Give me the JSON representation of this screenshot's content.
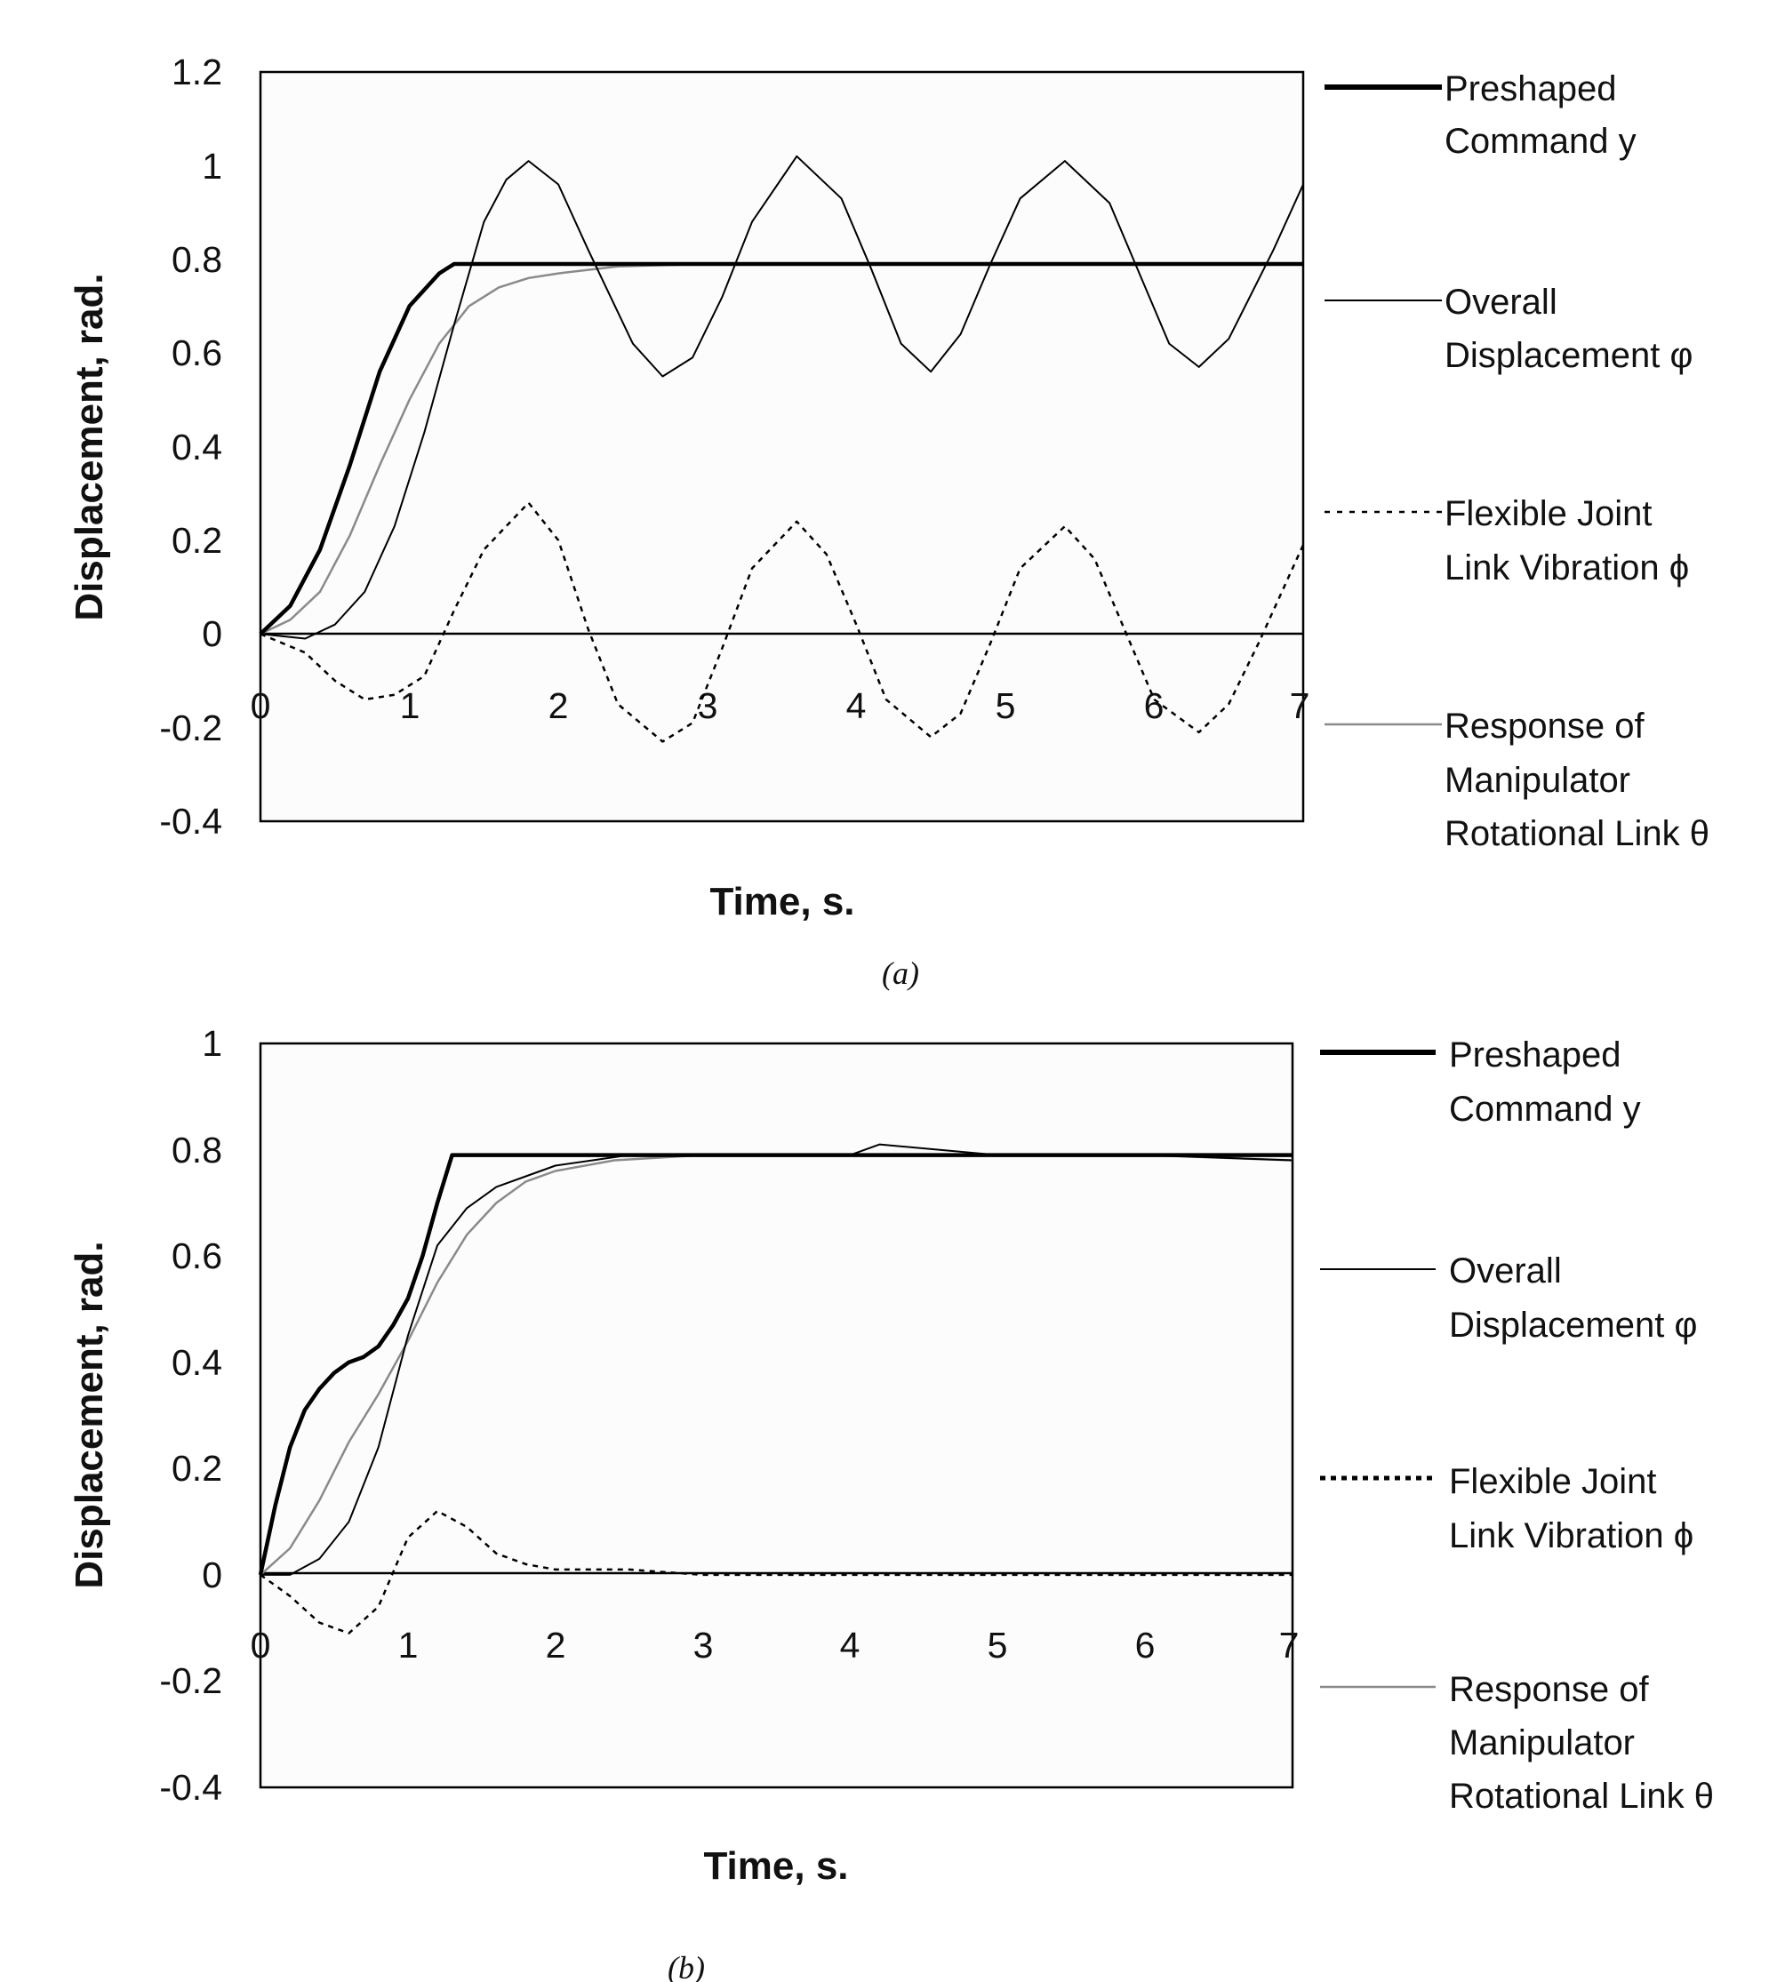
{
  "chart_data": [
    {
      "type": "line",
      "panel_label": "(a)",
      "xlabel": "Time, s.",
      "ylabel": "Displacement, rad.",
      "xlim": [
        0,
        7
      ],
      "ylim": [
        -0.4,
        1.2
      ],
      "x_ticks": [
        "0",
        "1",
        "2",
        "3",
        "4",
        "5",
        "6",
        "7"
      ],
      "y_ticks": [
        "1.2",
        "1",
        "0.8",
        "0.6",
        "0.4",
        "0.2",
        "0",
        "-0.2",
        "-0.4"
      ],
      "grid": false,
      "legend_position": "right",
      "series": [
        {
          "name": "Preshaped Command y",
          "style": "thick-solid",
          "color": "#000000",
          "x": [
            0,
            0.2,
            0.4,
            0.6,
            0.8,
            1.0,
            1.2,
            1.3,
            2,
            3,
            4,
            5,
            6,
            7
          ],
          "y": [
            0,
            0.06,
            0.18,
            0.36,
            0.56,
            0.7,
            0.77,
            0.79,
            0.79,
            0.79,
            0.79,
            0.79,
            0.79,
            0.79
          ]
        },
        {
          "name": "Overall Displacement φ",
          "style": "thin-solid",
          "color": "#000000",
          "x": [
            0,
            0.3,
            0.5,
            0.7,
            0.9,
            1.1,
            1.3,
            1.5,
            1.65,
            1.8,
            2.0,
            2.2,
            2.5,
            2.7,
            2.9,
            3.1,
            3.3,
            3.6,
            3.9,
            4.1,
            4.3,
            4.5,
            4.7,
            4.9,
            5.1,
            5.4,
            5.7,
            5.9,
            6.1,
            6.3,
            6.5,
            6.8,
            7.0
          ],
          "y": [
            0,
            -0.01,
            0.02,
            0.09,
            0.23,
            0.43,
            0.66,
            0.88,
            0.97,
            1.01,
            0.96,
            0.82,
            0.62,
            0.55,
            0.59,
            0.72,
            0.88,
            1.02,
            0.93,
            0.78,
            0.62,
            0.56,
            0.64,
            0.79,
            0.93,
            1.01,
            0.92,
            0.77,
            0.62,
            0.57,
            0.63,
            0.82,
            0.96
          ]
        },
        {
          "name": "Flexible Joint Link Vibration ϕ",
          "style": "dotted",
          "color": "#000000",
          "x": [
            0,
            0.3,
            0.5,
            0.7,
            0.9,
            1.1,
            1.3,
            1.5,
            1.8,
            2.0,
            2.2,
            2.4,
            2.7,
            2.9,
            3.1,
            3.3,
            3.6,
            3.8,
            4.0,
            4.2,
            4.5,
            4.7,
            4.9,
            5.1,
            5.4,
            5.6,
            5.8,
            6.0,
            6.3,
            6.5,
            6.7,
            7.0
          ],
          "y": [
            0,
            -0.04,
            -0.1,
            -0.14,
            -0.13,
            -0.09,
            0.05,
            0.18,
            0.28,
            0.2,
            0.01,
            -0.15,
            -0.23,
            -0.19,
            -0.03,
            0.14,
            0.24,
            0.17,
            0.02,
            -0.14,
            -0.22,
            -0.17,
            -0.02,
            0.14,
            0.23,
            0.16,
            0.01,
            -0.14,
            -0.21,
            -0.15,
            -0.02,
            0.19
          ]
        },
        {
          "name": "Response of Manipulator Rotational Link θ",
          "style": "thin-solid-gray",
          "color": "#8a8a8a",
          "x": [
            0,
            0.2,
            0.4,
            0.6,
            0.8,
            1.0,
            1.2,
            1.4,
            1.6,
            1.8,
            2.0,
            2.4,
            3,
            4,
            5,
            6,
            7
          ],
          "y": [
            0,
            0.03,
            0.09,
            0.21,
            0.36,
            0.5,
            0.62,
            0.7,
            0.74,
            0.76,
            0.77,
            0.785,
            0.79,
            0.79,
            0.79,
            0.79,
            0.79
          ]
        }
      ]
    },
    {
      "type": "line",
      "panel_label": "(b)",
      "xlabel": "Time, s.",
      "ylabel": "Displacement, rad.",
      "xlim": [
        0,
        7
      ],
      "ylim": [
        -0.4,
        1
      ],
      "x_ticks": [
        "0",
        "1",
        "2",
        "3",
        "4",
        "5",
        "6",
        "7"
      ],
      "y_ticks": [
        "1",
        "0.8",
        "0.6",
        "0.4",
        "0.2",
        "0",
        "-0.2",
        "-0.4"
      ],
      "grid": false,
      "legend_position": "right",
      "series": [
        {
          "name": "Preshaped Command y",
          "style": "thick-solid",
          "color": "#000000",
          "x": [
            0,
            0.1,
            0.2,
            0.3,
            0.4,
            0.5,
            0.6,
            0.7,
            0.8,
            0.9,
            1.0,
            1.1,
            1.2,
            1.3,
            2,
            3,
            4,
            5,
            6,
            7
          ],
          "y": [
            0,
            0.13,
            0.24,
            0.31,
            0.35,
            0.38,
            0.4,
            0.41,
            0.43,
            0.47,
            0.52,
            0.6,
            0.7,
            0.79,
            0.79,
            0.79,
            0.79,
            0.79,
            0.79,
            0.79
          ]
        },
        {
          "name": "Overall Displacement φ",
          "style": "thin-solid",
          "color": "#000000",
          "x": [
            0,
            0.2,
            0.4,
            0.6,
            0.8,
            1.0,
            1.2,
            1.4,
            1.6,
            1.8,
            2.0,
            2.5,
            3,
            4,
            4.2,
            5,
            6,
            7
          ],
          "y": [
            0,
            0.0,
            0.03,
            0.1,
            0.24,
            0.45,
            0.62,
            0.69,
            0.73,
            0.75,
            0.77,
            0.79,
            0.79,
            0.79,
            0.81,
            0.79,
            0.79,
            0.78
          ]
        },
        {
          "name": "Flexible Joint Link Vibration ϕ",
          "style": "dotted",
          "color": "#000000",
          "x": [
            0,
            0.2,
            0.4,
            0.6,
            0.8,
            1.0,
            1.2,
            1.4,
            1.6,
            1.8,
            2.0,
            2.5,
            3,
            4,
            5,
            6,
            7
          ],
          "y": [
            0,
            -0.04,
            -0.09,
            -0.11,
            -0.06,
            0.07,
            0.12,
            0.09,
            0.04,
            0.02,
            0.01,
            0.01,
            0.0,
            0.0,
            0.0,
            0.0,
            0.0
          ]
        },
        {
          "name": "Response of Manipulator Rotational Link θ",
          "style": "thin-solid-gray",
          "color": "#8a8a8a",
          "x": [
            0,
            0.2,
            0.4,
            0.6,
            0.8,
            1.0,
            1.2,
            1.4,
            1.6,
            1.8,
            2.0,
            2.4,
            3,
            4,
            5,
            6,
            7
          ],
          "y": [
            0,
            0.05,
            0.14,
            0.25,
            0.34,
            0.44,
            0.55,
            0.64,
            0.7,
            0.74,
            0.76,
            0.78,
            0.79,
            0.79,
            0.79,
            0.79,
            0.78
          ]
        }
      ]
    }
  ],
  "legend": {
    "preshaped": {
      "line1": "Preshaped",
      "line2": "Command y"
    },
    "overall": {
      "line1": "Overall",
      "line2": "Displacement φ"
    },
    "flexible": {
      "line1": "Flexible Joint",
      "line2": "Link Vibration ϕ"
    },
    "response": {
      "line1": "Response of",
      "line2": "Manipulator",
      "line3": "Rotational Link θ"
    }
  }
}
